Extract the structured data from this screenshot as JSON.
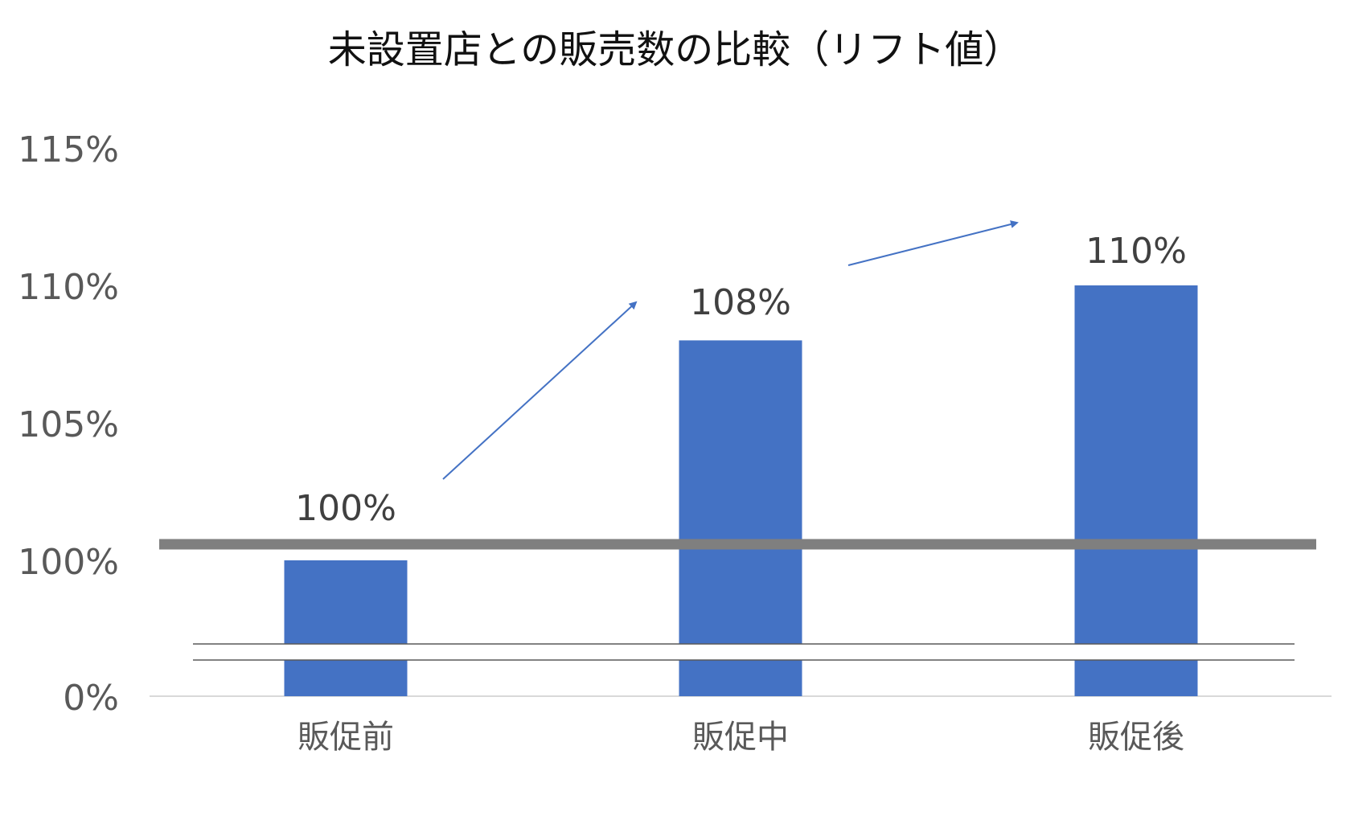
{
  "chart_data": {
    "type": "bar",
    "title": "未設置店との販売数の比較（リフト値）",
    "xlabel": "",
    "ylabel": "",
    "categories": [
      "販促前",
      "販促中",
      "販促後"
    ],
    "values": [
      100,
      108,
      110
    ],
    "data_labels": [
      "100%",
      "108%",
      "110%"
    ],
    "y_tick_labels": [
      "0%",
      "100%",
      "105%",
      "110%",
      "115%"
    ],
    "axis_break": true,
    "reference_line": {
      "value": 100,
      "color": "#7f7f7f"
    },
    "trend_arrows": true,
    "grid": false,
    "legend": "none",
    "colors": {
      "bar": "#4472c4",
      "arrow": "#4472c4",
      "reference_line": "#7f7f7f",
      "tick_text": "#595959"
    }
  }
}
